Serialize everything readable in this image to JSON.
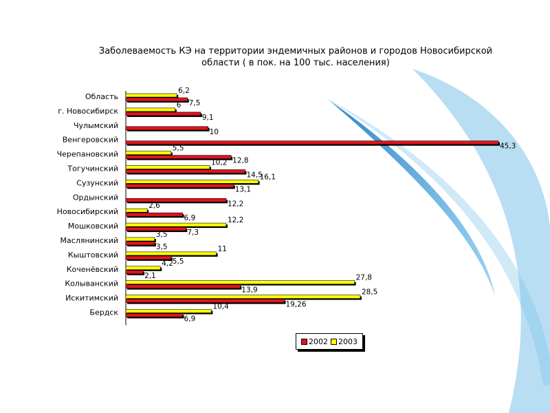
{
  "colors": {
    "background": "#ffffff",
    "deco_light": "#cfe9f7",
    "deco_mid": "#7fc3ea",
    "deco_dark": "#2f86c9",
    "series_2002": "#e0141b",
    "series_2003": "#ffff00"
  },
  "chart_data": {
    "type": "bar",
    "orientation": "horizontal",
    "title": "Заболеваемость КЭ на территории эндемичных районов и городов Новосибирской области ( в пок. на 100 тыс. населения)",
    "title_lines": [
      "Заболеваемость КЭ на территории эндемичных районов и городов Новосибирской",
      "области ( в пок. на 100 тыс. населения)"
    ],
    "categories": [
      "Область",
      "г. Новосибирск",
      "Чулымский",
      "Венгеровский",
      "Черепановский",
      "Тогучинский",
      "Сузунский",
      "Ордынский",
      "Новосибирский",
      "Мошковский",
      "Маслянинский",
      "Кыштовский",
      "Коченёвский",
      "Колыванский",
      "Искитимский",
      "Бердск"
    ],
    "series": [
      {
        "name": "2002",
        "color": "#e0141b",
        "values": [
          7.5,
          9.1,
          10,
          45.3,
          12.8,
          14.5,
          13.1,
          12.2,
          6.9,
          7.3,
          3.5,
          5.5,
          2.1,
          13.9,
          19.26,
          6.9
        ],
        "labels": [
          "7,5",
          "9,1",
          "10",
          "45,3",
          "12,8",
          "14,5",
          "13,1",
          "12,2",
          "6,9",
          "7,3",
          "3,5",
          "5,5",
          "2,1",
          "13,9",
          "19,26",
          "6,9"
        ]
      },
      {
        "name": "2003",
        "color": "#ffff00",
        "values": [
          6.2,
          6,
          null,
          null,
          5.5,
          10.2,
          16.1,
          null,
          2.6,
          12.2,
          3.5,
          11,
          4.2,
          27.8,
          28.5,
          10.4
        ],
        "labels": [
          "6,2",
          "6",
          "",
          "",
          "5,5",
          "10,2",
          "16,1",
          "",
          "2,6",
          "12,2",
          "3,5",
          "11",
          "4,2",
          "27,8",
          "28,5",
          "10,4"
        ]
      }
    ],
    "legend": {
      "position": "bottom-right",
      "items": [
        "2002",
        "2003"
      ]
    },
    "grid": false
  }
}
